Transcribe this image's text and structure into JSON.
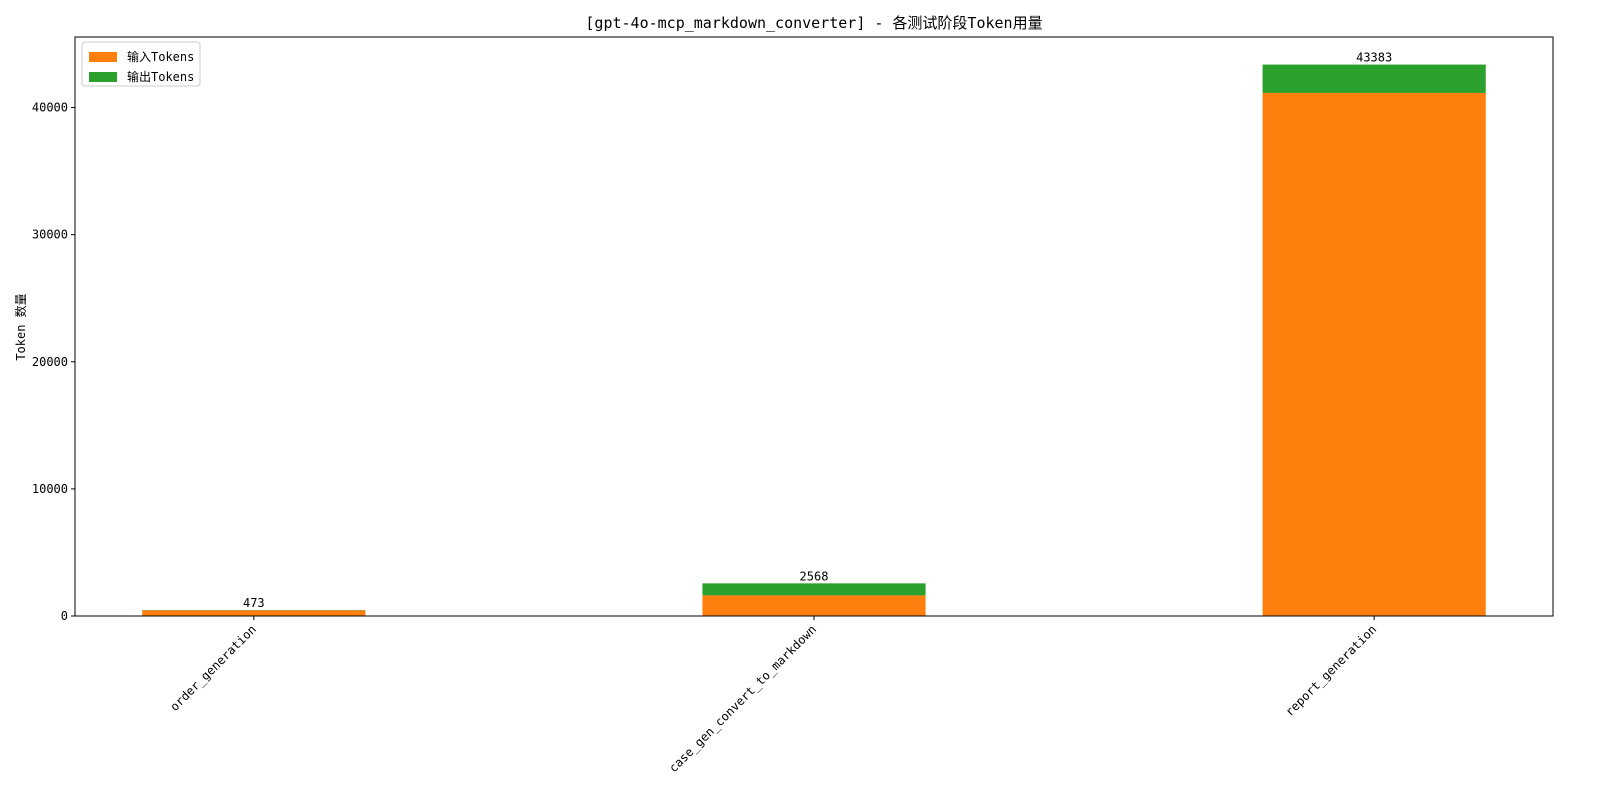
{
  "chart_data": {
    "type": "bar",
    "stacked": true,
    "title": "[gpt-4o-mcp_markdown_converter] - 各测试阶段Token用量",
    "xlabel": "",
    "ylabel": "Token 数量",
    "categories": [
      "order_generation",
      "case_gen_convert_to_markdown",
      "report_generation"
    ],
    "series": [
      {
        "name": "输入Tokens",
        "color": "#ff7f0e",
        "values": [
          450,
          1620,
          41150
        ]
      },
      {
        "name": "输出Tokens",
        "color": "#2ca02c",
        "values": [
          23,
          948,
          2233
        ]
      }
    ],
    "totals": [
      473,
      2568,
      43383
    ],
    "ylim": [
      0,
      45552
    ],
    "yticks": [
      0,
      10000,
      20000,
      30000,
      40000
    ],
    "grid": false,
    "legend_position": "top-left"
  }
}
